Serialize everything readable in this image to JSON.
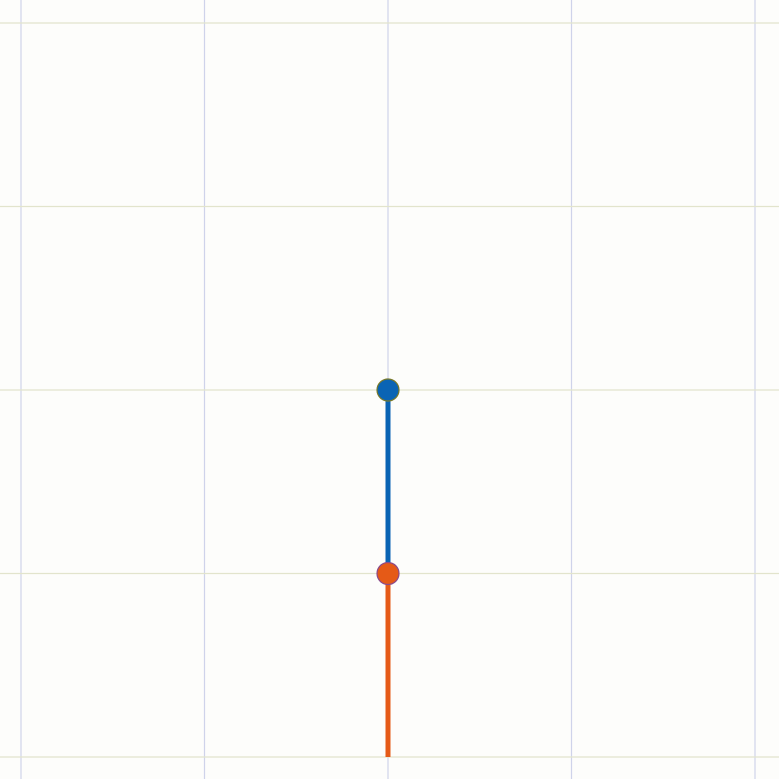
{
  "canvas": {
    "background": "#fdfdfb"
  },
  "grid": {
    "columns": 4,
    "rows": 4,
    "vertical_line_color": "#cfd3ea",
    "horizontal_line_color": "#e2e4cc"
  },
  "linkage": {
    "upper_segment": {
      "color": "#0a64b4",
      "from": [
        0,
        0
      ],
      "to": [
        0,
        -1
      ]
    },
    "lower_segment": {
      "color": "#e55a17",
      "from": [
        0,
        -1
      ],
      "to": [
        0,
        -2
      ]
    },
    "joints": [
      {
        "name": "joint-top",
        "at": [
          0,
          0
        ],
        "fill": "#0a64b4",
        "stroke": "#7a7a2a"
      },
      {
        "name": "joint-middle",
        "at": [
          0,
          -1
        ],
        "fill": "#e55a17",
        "stroke": "#8a4a8a"
      }
    ]
  }
}
